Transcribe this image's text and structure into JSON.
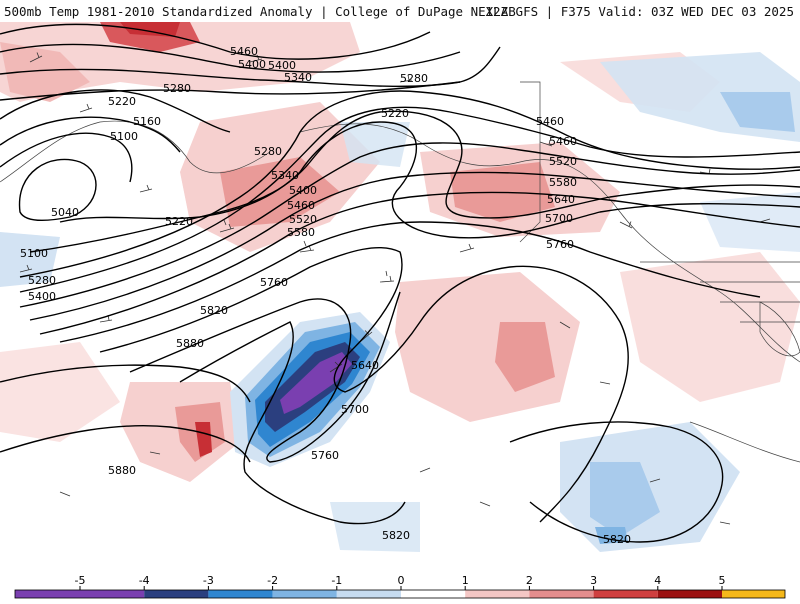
{
  "header": {
    "left_text": "500mb Temp 1981-2010 Standardized Anomaly | College of DuPage NEXLAB",
    "right_text": "12Z GFS | F375 Valid: 03Z WED DEC 03 2025"
  },
  "colorbar": {
    "ticks": [
      "-5",
      "-4",
      "-3",
      "-2",
      "-1",
      "0",
      "1",
      "2",
      "3",
      "4",
      "5"
    ],
    "colors": [
      "#7a3fb0",
      "#2b3f7f",
      "#2f86d0",
      "#7fb4e3",
      "#c7dcf1",
      "#ffffff",
      "#f4c7c5",
      "#e48d8d",
      "#cf3f3f",
      "#9b1111",
      "#f5b81a"
    ]
  },
  "height_contours": {
    "labels": [
      "5460",
      "5400",
      "5340",
      "5280",
      "5220",
      "5160",
      "5100",
      "5040",
      "5220",
      "5280",
      "5340",
      "5400",
      "5460",
      "5520",
      "5580",
      "5640",
      "5700",
      "5760",
      "5820",
      "5880",
      "5460",
      "5400",
      "5280",
      "5220",
      "5100",
      "5280",
      "5400",
      "5460",
      "5520",
      "5580",
      "5640",
      "5700",
      "5760",
      "5820",
      "5880",
      "5760",
      "5820"
    ]
  },
  "map": {
    "background": "#ffffff",
    "positive_anomaly_light": "#f6d0cf",
    "positive_anomaly_med": "#e99a98",
    "positive_anomaly_strong": "#c72f35",
    "negative_anomaly_light": "#d3e3f3",
    "negative_anomaly_med": "#7fb4e3",
    "negative_anomaly_strong": "#2f86d0",
    "negative_anomaly_core": "#2b3f7f",
    "negative_anomaly_extreme": "#7a3fb0"
  }
}
